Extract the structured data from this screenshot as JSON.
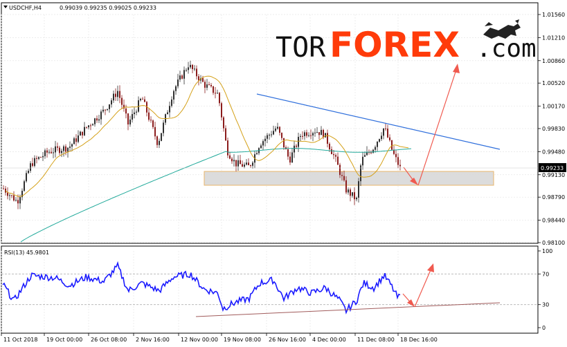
{
  "header": {
    "symbol_label": "USDCHF,H4",
    "ohlc_label": "0.99039 0.99235 0.99025 0.99233"
  },
  "logo": {
    "part1": "TOR",
    "part2": "FOREX",
    "part3": ".com",
    "accent_color": "#ff3b0a",
    "icon": "bull-bear-icon"
  },
  "current_price_label": "0.99233",
  "rsi_label": "RSI(13) 45.9801",
  "chart_data": [
    {
      "type": "candlestick",
      "title": "USDCHF,H4",
      "x_tick_labels": [
        "11 Oct 2018",
        "19 Oct 00:00",
        "26 Oct 08:00",
        "2 Nov 16:00",
        "12 Nov 00:00",
        "19 Nov 08:00",
        "26 Nov 16:00",
        "4 Dec 00:00",
        "11 Dec 08:00",
        "18 Dec 16:00"
      ],
      "y_ticks": [
        "1.01560",
        "1.01210",
        "1.00860",
        "1.00520",
        "1.00170",
        "0.99830",
        "0.99480",
        "0.99130",
        "0.98790",
        "0.98440",
        "0.98100"
      ],
      "ylim": [
        0.981,
        1.0156
      ],
      "current_price": 0.99233,
      "candle_colors": {
        "up": "#2f2f2f",
        "down": "#8b1c1c"
      },
      "series": [
        {
          "name": "",
          "color": "#d4a017",
          "kind": "moving-average"
        },
        {
          "name": "",
          "color": "#20a99a",
          "kind": "moving-average"
        }
      ],
      "annotations": {
        "resistance_line": {
          "color": "#2f6fdc"
        },
        "support_zone": {
          "y_range": [
            0.9902,
            0.9922
          ],
          "fill": "#d6d6d6",
          "border": "#e8b56a"
        },
        "forecast_arrows_color": "#f05a4f"
      },
      "grid": true
    },
    {
      "type": "line",
      "title": "RSI(13)",
      "current_value": 45.9801,
      "y_ticks": [
        "100",
        "70",
        "30",
        "0"
      ],
      "ylim": [
        0,
        100
      ],
      "levels": [
        70,
        30
      ],
      "series": [
        {
          "name": "",
          "color": "#1a1aff"
        }
      ],
      "annotations": {
        "trend_line_color": "#a05a5a",
        "forecast_arrows_color": "#f05a4f"
      }
    }
  ]
}
